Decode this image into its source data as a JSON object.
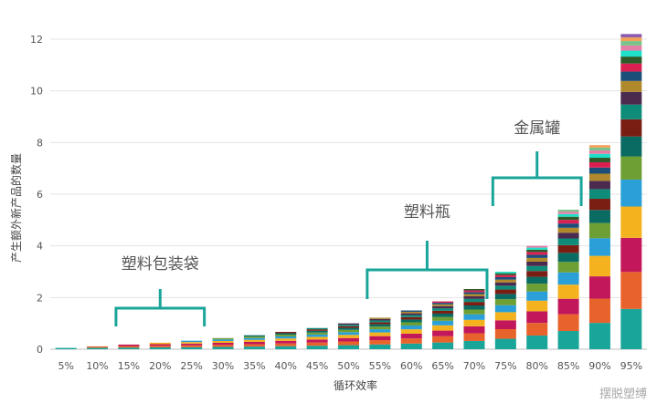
{
  "chart_data": {
    "type": "bar",
    "stacked": true,
    "categories": [
      "5%",
      "10%",
      "15%",
      "20%",
      "25%",
      "30%",
      "35%",
      "40%",
      "45%",
      "50%",
      "55%",
      "60%",
      "65%",
      "70%",
      "75%",
      "80%",
      "85%",
      "90%",
      "95%"
    ],
    "totals": [
      0.05,
      0.11,
      0.18,
      0.25,
      0.33,
      0.43,
      0.54,
      0.67,
      0.82,
      1.0,
      1.22,
      1.5,
      1.85,
      2.33,
      3.0,
      4.0,
      5.4,
      7.9,
      12.2
    ],
    "xlabel": "循环效率",
    "ylabel": "产生额外新产品的数量",
    "ylim": [
      0,
      12.5
    ],
    "yticks": [
      0,
      2,
      4,
      6,
      8,
      10,
      12
    ],
    "grid": true,
    "legend": "none",
    "annotations": [
      {
        "text": "塑料包装袋",
        "from": "15%",
        "to": "25%"
      },
      {
        "text": "塑料瓶",
        "from": "55%",
        "to": "70%"
      },
      {
        "text": "金属罐",
        "from": "75%",
        "to": "85%"
      }
    ],
    "segment_colors": [
      "#1aa59a",
      "#e8632b",
      "#c2185b",
      "#f5b21f",
      "#2a9fd8",
      "#6e9f34",
      "#0a6b63",
      "#7a1e14",
      "#0f8c79",
      "#4a2a4e",
      "#b0892d",
      "#1c4e7a",
      "#dc1f52",
      "#2f5a29",
      "#1fe0c8",
      "#e57fa6",
      "#7bc38c",
      "#f2a15a",
      "#8a5ab0",
      "#1a8077",
      "#c43c3c",
      "#8fb84a",
      "#3aa8cf"
    ],
    "accent_color": "#1aa59a"
  },
  "watermark": "摆脱塑缚"
}
